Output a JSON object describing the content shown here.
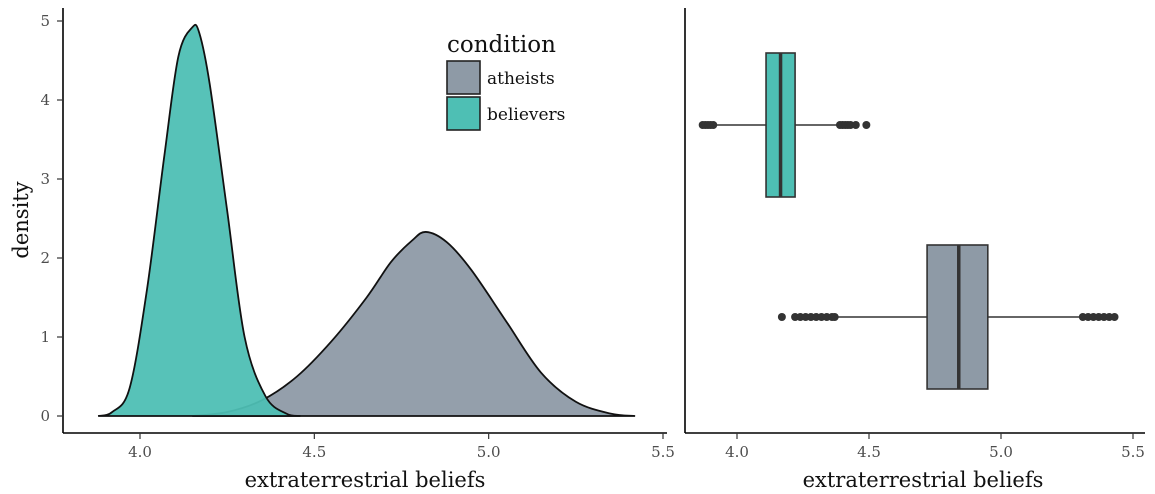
{
  "colors": {
    "atheists": "#8e9aa6",
    "believers": "#4ebfb4"
  },
  "chart_data": [
    {
      "type": "area",
      "panel": "left",
      "xlabel": "extraterrestrial beliefs",
      "ylabel": "density",
      "xlim": [
        3.8,
        5.5
      ],
      "ylim": [
        0,
        5
      ],
      "x_ticks": [
        "4.0",
        "4.5",
        "5.0",
        "5.5"
      ],
      "y_ticks": [
        "0",
        "1",
        "2",
        "3",
        "4",
        "5"
      ],
      "legend": {
        "title": "condition",
        "placement": "top-right",
        "entries": [
          "atheists",
          "believers"
        ]
      },
      "series": [
        {
          "name": "atheists",
          "x": [
            4.15,
            4.25,
            4.35,
            4.45,
            4.55,
            4.65,
            4.72,
            4.78,
            4.82,
            4.88,
            4.95,
            5.05,
            5.15,
            5.25,
            5.35,
            5.42
          ],
          "y": [
            0.0,
            0.05,
            0.2,
            0.5,
            0.95,
            1.5,
            1.95,
            2.22,
            2.33,
            2.2,
            1.85,
            1.2,
            0.55,
            0.18,
            0.03,
            0.0
          ]
        },
        {
          "name": "believers",
          "x": [
            3.88,
            3.92,
            3.97,
            4.02,
            4.07,
            4.11,
            4.15,
            4.17,
            4.2,
            4.25,
            4.3,
            4.36,
            4.42,
            4.46
          ],
          "y": [
            0.0,
            0.05,
            0.35,
            1.6,
            3.3,
            4.55,
            4.92,
            4.85,
            4.2,
            2.6,
            1.0,
            0.25,
            0.03,
            0.0
          ]
        }
      ]
    },
    {
      "type": "box",
      "panel": "right",
      "xlabel": "extraterrestrial beliefs",
      "xlim": [
        3.75,
        5.5
      ],
      "x_ticks": [
        "4.0",
        "4.5",
        "5.0",
        "5.5"
      ],
      "series": [
        {
          "name": "believers",
          "whisker_low": 3.92,
          "q1": 4.11,
          "median": 4.165,
          "q3": 4.22,
          "whisker_high": 4.38,
          "outliers": [
            3.87,
            3.88,
            3.89,
            3.9,
            3.91,
            4.39,
            4.4,
            4.41,
            4.42,
            4.43,
            4.45,
            4.49
          ]
        },
        {
          "name": "atheists",
          "whisker_low": 4.38,
          "q1": 4.72,
          "median": 4.84,
          "q3": 4.95,
          "whisker_high": 5.3,
          "outliers": [
            4.17,
            4.22,
            4.24,
            4.26,
            4.28,
            4.3,
            4.32,
            4.34,
            4.36,
            4.37,
            5.31,
            5.33,
            5.35,
            5.37,
            5.39,
            5.41,
            5.43
          ]
        }
      ]
    }
  ]
}
